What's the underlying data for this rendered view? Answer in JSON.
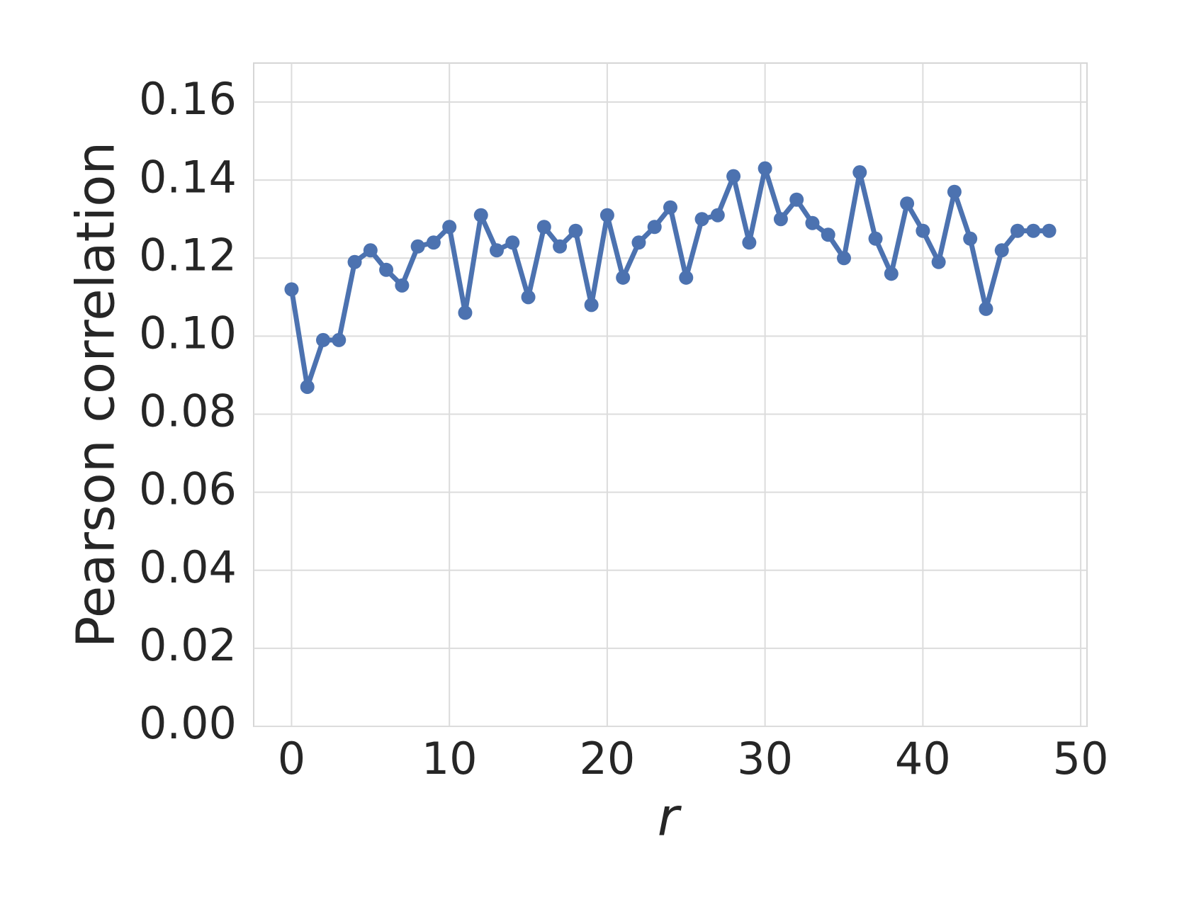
{
  "chart_data": {
    "type": "line",
    "x_label": "r",
    "y_label": "Pearson correlation",
    "x": [
      0,
      1,
      2,
      3,
      4,
      5,
      6,
      7,
      8,
      9,
      10,
      11,
      12,
      13,
      14,
      15,
      16,
      17,
      18,
      19,
      20,
      21,
      22,
      23,
      24,
      25,
      26,
      27,
      28,
      29,
      30,
      31,
      32,
      33,
      34,
      35,
      36,
      37,
      38,
      39,
      40,
      41,
      42,
      43,
      44,
      45,
      46,
      47,
      48
    ],
    "series": [
      {
        "color": "#4c72b0",
        "values": [
          0.112,
          0.087,
          0.099,
          0.099,
          0.119,
          0.122,
          0.117,
          0.113,
          0.123,
          0.124,
          0.128,
          0.106,
          0.131,
          0.122,
          0.124,
          0.11,
          0.128,
          0.123,
          0.127,
          0.108,
          0.131,
          0.115,
          0.124,
          0.128,
          0.133,
          0.115,
          0.13,
          0.131,
          0.141,
          0.124,
          0.143,
          0.13,
          0.135,
          0.129,
          0.126,
          0.12,
          0.142,
          0.125,
          0.116,
          0.134,
          0.127,
          0.119,
          0.137,
          0.125,
          0.107,
          0.122,
          0.127,
          0.127,
          0.127
        ]
      }
    ],
    "xlim": [
      -2.4,
      50.4
    ],
    "ylim": [
      0,
      0.17
    ],
    "xticks": [
      0,
      10,
      20,
      30,
      40,
      50
    ],
    "yticks": [
      {
        "value": 0,
        "label": "0.00"
      },
      0.02,
      0.04,
      0.06,
      0.08,
      {
        "value": 0.1,
        "label": "0.10"
      },
      0.12,
      0.14,
      0.16
    ],
    "grid": true
  }
}
